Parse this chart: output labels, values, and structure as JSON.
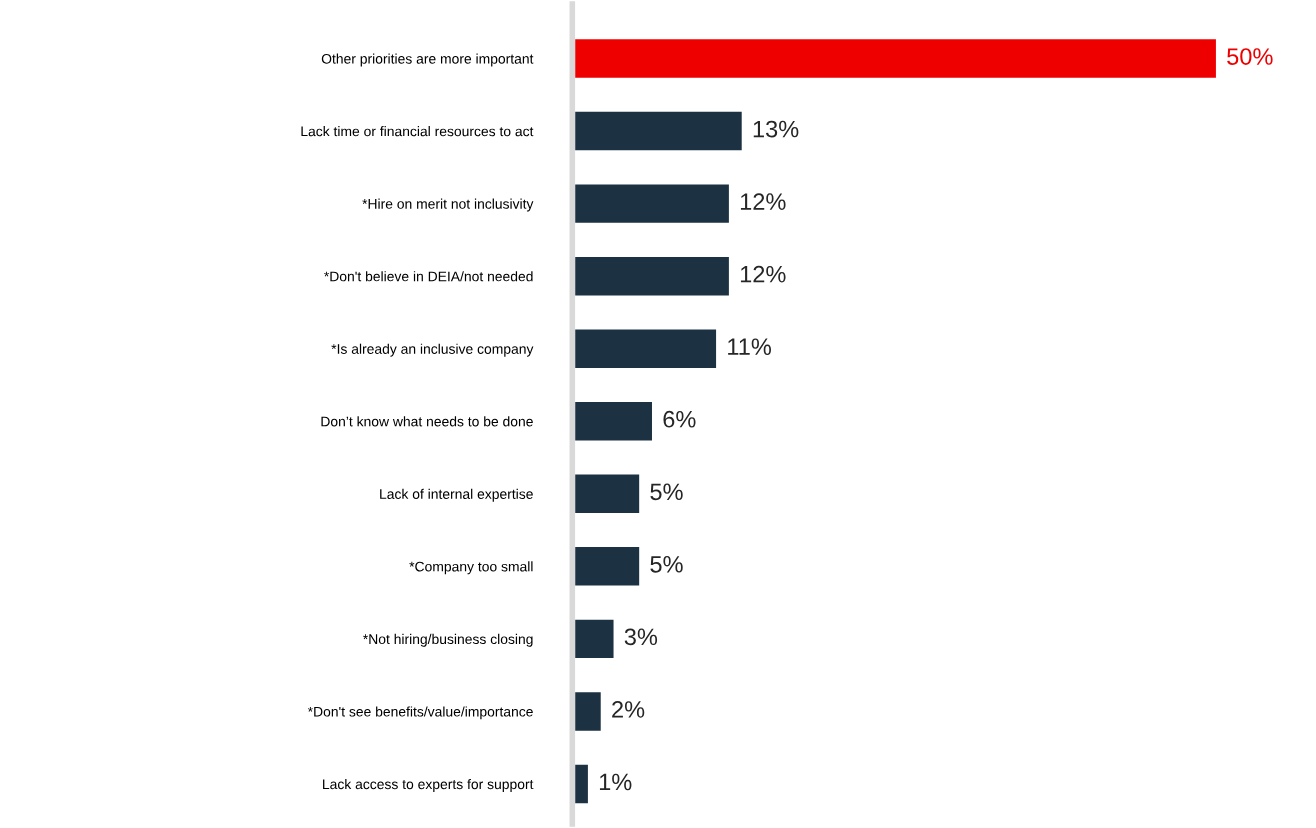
{
  "chart_data": {
    "type": "bar",
    "orientation": "horizontal",
    "categories": [
      "Other priorities are more important",
      "Lack time or financial resources to act",
      "*Hire on merit not inclusivity",
      "*Don't believe in DEIA/not needed",
      "*Is already an inclusive company",
      "Don’t know what needs to be done",
      "Lack of internal expertise",
      "*Company too small",
      "*Not hiring/business closing",
      "*Don't see benefits/value/importance",
      "Lack access to experts for support"
    ],
    "values": [
      50,
      13,
      12,
      12,
      11,
      6,
      5,
      5,
      3,
      2,
      1
    ],
    "colors": [
      "#ee0000",
      "#1c3142",
      "#1c3142",
      "#1c3142",
      "#1c3142",
      "#1c3142",
      "#1c3142",
      "#1c3142",
      "#1c3142",
      "#1c3142",
      "#1c3142"
    ],
    "value_labels": [
      "50%",
      "13%",
      "12%",
      "12%",
      "11%",
      "6%",
      "5%",
      "5%",
      "3%",
      "2%",
      "1%"
    ],
    "grid": false,
    "legend": false
  }
}
